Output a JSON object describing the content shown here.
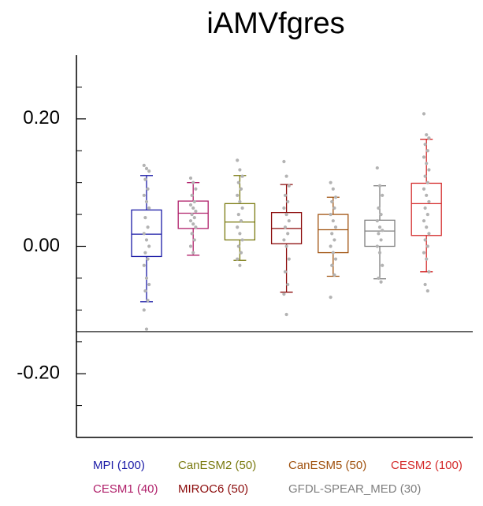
{
  "chart_data": {
    "type": "box",
    "title": "iAMVfgres",
    "ylim": [
      -0.3,
      0.3
    ],
    "yticks": [
      {
        "value": -0.2,
        "label": "-0.20"
      },
      {
        "value": 0,
        "label": "0.00"
      },
      {
        "value": 0.2,
        "label": "0.20"
      }
    ],
    "yminor": [
      -0.25,
      -0.15,
      -0.1,
      -0.05,
      0.05,
      0.1,
      0.15,
      0.25
    ],
    "hline": -0.134,
    "series": [
      {
        "name": "MPI (100)",
        "color": "#1a1aa6",
        "box": {
          "whislo": -0.087,
          "q1": -0.016,
          "med": 0.019,
          "q3": 0.057,
          "whishi": 0.111
        },
        "points": [
          0.127,
          0.122,
          0.118,
          0.105,
          0.09,
          0.08,
          0.07,
          0.06,
          0.045,
          0.03,
          0.02,
          0.01,
          0,
          -0.01,
          -0.02,
          -0.03,
          -0.05,
          -0.06,
          -0.07,
          -0.085,
          -0.1,
          -0.13
        ]
      },
      {
        "name": "CESM1 (40)",
        "color": "#b0206a",
        "box": {
          "whislo": -0.014,
          "q1": 0.028,
          "med": 0.052,
          "q3": 0.071,
          "whishi": 0.1
        },
        "points": [
          0.107,
          0.1,
          0.09,
          0.08,
          0.07,
          0.065,
          0.06,
          0.055,
          0.05,
          0.045,
          0.04,
          0.035,
          0.03,
          0.02,
          0.01,
          0,
          -0.01
        ]
      },
      {
        "name": "CanESM2 (50)",
        "color": "#7a7a10",
        "box": {
          "whislo": -0.022,
          "q1": 0.01,
          "med": 0.038,
          "q3": 0.067,
          "whishi": 0.111
        },
        "points": [
          0.135,
          0.12,
          0.11,
          0.1,
          0.09,
          0.08,
          0.07,
          0.06,
          0.05,
          0.04,
          0.03,
          0.02,
          0.01,
          0,
          -0.01,
          -0.02,
          -0.03
        ]
      },
      {
        "name": "MIROC6 (50)",
        "color": "#8b0a0a",
        "box": {
          "whislo": -0.072,
          "q1": 0.004,
          "med": 0.028,
          "q3": 0.053,
          "whishi": 0.097
        },
        "points": [
          0.133,
          0.11,
          0.095,
          0.08,
          0.07,
          0.06,
          0.05,
          0.04,
          0.03,
          0.02,
          0.01,
          0,
          -0.02,
          -0.04,
          -0.06,
          -0.075,
          -0.107
        ]
      },
      {
        "name": "CanESM5 (50)",
        "color": "#a0520f",
        "box": {
          "whislo": -0.047,
          "q1": -0.01,
          "med": 0.026,
          "q3": 0.05,
          "whishi": 0.077
        },
        "points": [
          0.1,
          0.09,
          0.077,
          0.07,
          0.06,
          0.05,
          0.04,
          0.03,
          0.02,
          0.01,
          0,
          -0.01,
          -0.02,
          -0.03,
          -0.045,
          -0.08
        ]
      },
      {
        "name": "GFDL-SPEAR_MED (30)",
        "color": "#7f7f7f",
        "box": {
          "whislo": -0.051,
          "q1": 0,
          "med": 0.024,
          "q3": 0.041,
          "whishi": 0.095
        },
        "points": [
          0.123,
          0.095,
          0.08,
          0.06,
          0.05,
          0.04,
          0.03,
          0.025,
          0.02,
          0.01,
          0,
          -0.01,
          -0.03,
          -0.05,
          -0.056
        ]
      },
      {
        "name": "CESM2 (100)",
        "color": "#d42a2a",
        "box": {
          "whislo": -0.04,
          "q1": 0.017,
          "med": 0.067,
          "q3": 0.099,
          "whishi": 0.168
        },
        "points": [
          0.208,
          0.175,
          0.17,
          0.16,
          0.15,
          0.14,
          0.13,
          0.12,
          0.11,
          0.1,
          0.09,
          0.08,
          0.07,
          0.06,
          0.05,
          0.04,
          0.03,
          0.02,
          0.01,
          0,
          -0.01,
          -0.02,
          -0.04,
          -0.06,
          -0.07
        ]
      }
    ]
  }
}
